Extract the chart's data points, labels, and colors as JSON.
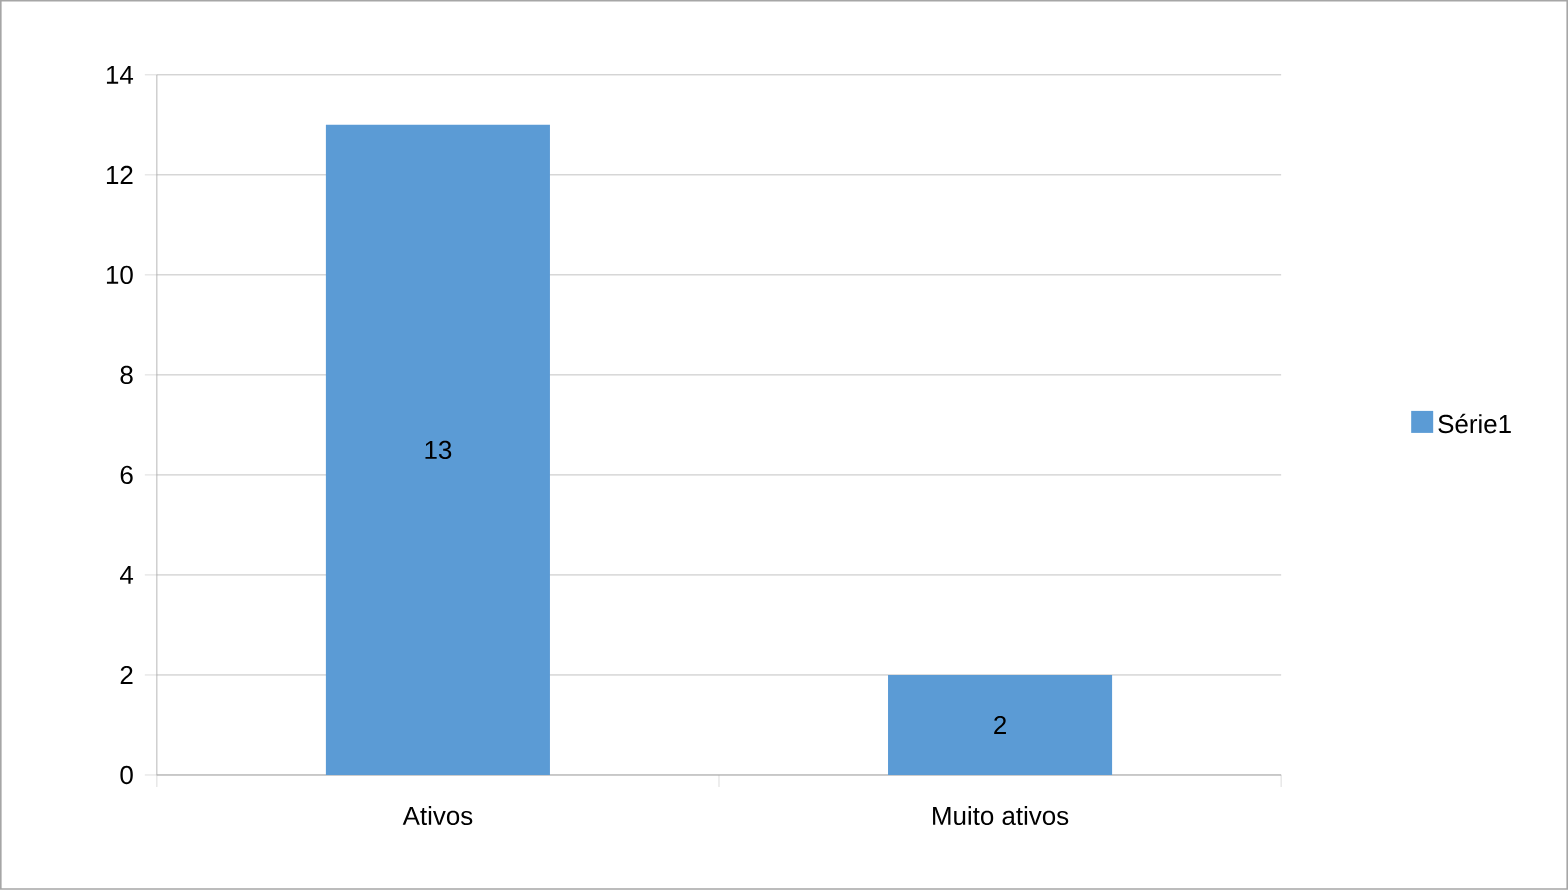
{
  "chart_data": {
    "type": "bar",
    "categories": [
      "Ativos",
      "Muito ativos"
    ],
    "series": [
      {
        "name": "Série1",
        "color": "#5b9bd5",
        "values": [
          13,
          2
        ]
      }
    ],
    "ylim": [
      0,
      14
    ],
    "yticks": [
      0,
      2,
      4,
      6,
      8,
      10,
      12,
      14
    ],
    "grid": "y",
    "legend": "right",
    "data_labels": true
  }
}
